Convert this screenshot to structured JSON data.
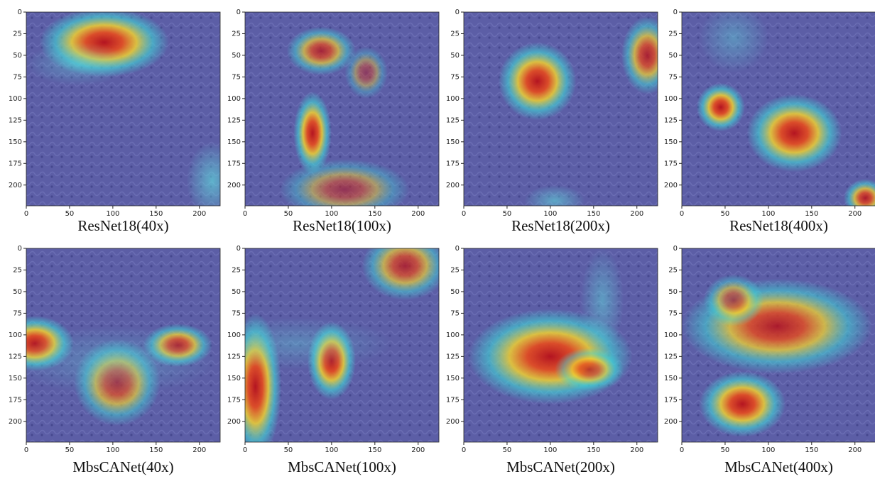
{
  "chart_data": [
    {
      "type": "image",
      "title": "ResNet18(40x)",
      "xlim": [
        0,
        224
      ],
      "ylim": [
        224,
        0
      ],
      "xticks": [
        0,
        50,
        100,
        150,
        200
      ],
      "yticks": [
        0,
        25,
        50,
        75,
        100,
        125,
        150,
        175,
        200
      ]
    },
    {
      "type": "image",
      "title": "ResNet18(100x)",
      "xlim": [
        0,
        224
      ],
      "ylim": [
        224,
        0
      ],
      "xticks": [
        0,
        50,
        100,
        150,
        200
      ],
      "yticks": [
        0,
        25,
        50,
        75,
        100,
        125,
        150,
        175,
        200
      ]
    },
    {
      "type": "image",
      "title": "ResNet18(200x)",
      "xlim": [
        0,
        224
      ],
      "ylim": [
        224,
        0
      ],
      "xticks": [
        0,
        50,
        100,
        150,
        200
      ],
      "yticks": [
        0,
        25,
        50,
        75,
        100,
        125,
        150,
        175,
        200
      ]
    },
    {
      "type": "image",
      "title": "ResNet18(400x)",
      "xlim": [
        0,
        224
      ],
      "ylim": [
        224,
        0
      ],
      "xticks": [
        0,
        50,
        100,
        150,
        200
      ],
      "yticks": [
        0,
        25,
        50,
        75,
        100,
        125,
        150,
        175,
        200
      ]
    },
    {
      "type": "image",
      "title": "MbsCANet(40x)",
      "xlim": [
        0,
        224
      ],
      "ylim": [
        224,
        0
      ],
      "xticks": [
        0,
        50,
        100,
        150,
        200
      ],
      "yticks": [
        0,
        25,
        50,
        75,
        100,
        125,
        150,
        175,
        200
      ]
    },
    {
      "type": "image",
      "title": "MbsCANet(100x)",
      "xlim": [
        0,
        224
      ],
      "ylim": [
        224,
        0
      ],
      "xticks": [
        0,
        50,
        100,
        150,
        200
      ],
      "yticks": [
        0,
        25,
        50,
        75,
        100,
        125,
        150,
        175,
        200
      ]
    },
    {
      "type": "image",
      "title": "MbsCANet(200x)",
      "xlim": [
        0,
        224
      ],
      "ylim": [
        224,
        0
      ],
      "xticks": [
        0,
        50,
        100,
        150,
        200
      ],
      "yticks": [
        0,
        25,
        50,
        75,
        100,
        125,
        150,
        175,
        200
      ]
    },
    {
      "type": "image",
      "title": "MbsCANet(400x)",
      "xlim": [
        0,
        224
      ],
      "ylim": [
        224,
        0
      ],
      "xticks": [
        0,
        50,
        100,
        150,
        200
      ],
      "yticks": [
        0,
        25,
        50,
        75,
        100,
        125,
        150,
        175,
        200
      ]
    }
  ]
}
